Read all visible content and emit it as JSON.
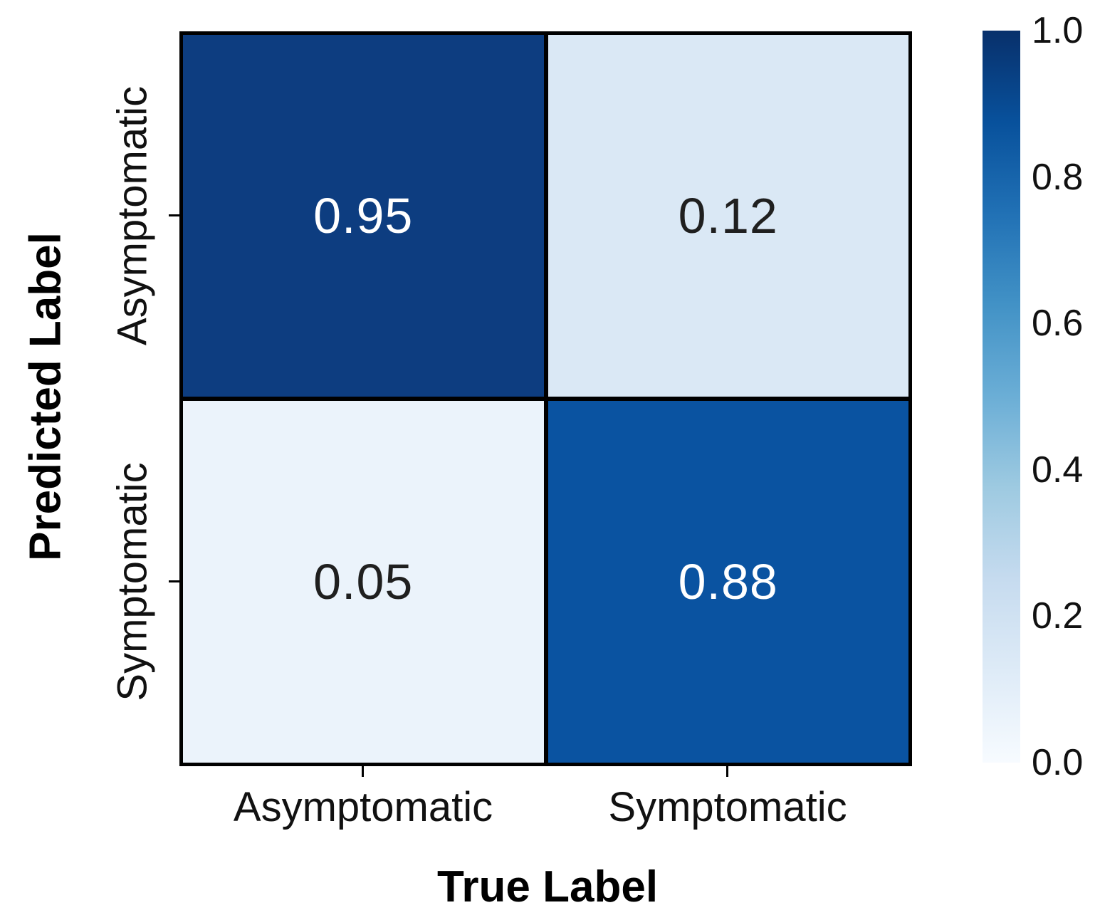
{
  "chart_data": {
    "type": "heatmap",
    "subtype": "confusion-matrix",
    "title": "",
    "xlabel": "True Label",
    "ylabel": "Predicted Label",
    "x_categories": [
      "Asymptomatic",
      "Symptomatic"
    ],
    "y_categories": [
      "Asymptomatic",
      "Symptomatic"
    ],
    "values": [
      [
        0.95,
        0.12
      ],
      [
        0.05,
        0.88
      ]
    ],
    "value_range": [
      0.0,
      1.0
    ],
    "colormap": "Blues",
    "grid": "black cell borders",
    "legend_position": "right-colorbar"
  },
  "cells": {
    "r0c0": {
      "value": "0.95",
      "bg": "#0d3d80",
      "fg": "#ffffff"
    },
    "r0c1": {
      "value": "0.12",
      "bg": "#dae8f5",
      "fg": "#1f1f1f"
    },
    "r1c0": {
      "value": "0.05",
      "bg": "#ebf3fb",
      "fg": "#1f1f1f"
    },
    "r1c1": {
      "value": "0.88",
      "bg": "#0a53a1",
      "fg": "#ffffff"
    }
  },
  "x_axis": {
    "label": "True Label",
    "ticks": [
      "Asymptomatic",
      "Symptomatic"
    ]
  },
  "y_axis": {
    "label": "Predicted Label",
    "ticks": [
      "Asymptomatic",
      "Symptomatic"
    ]
  },
  "colorbar": {
    "ticks": [
      "1.0",
      "0.8",
      "0.6",
      "0.4",
      "0.2",
      "0.0"
    ],
    "gradient_top_to_bottom": [
      "#08306b",
      "#08519c",
      "#2171b5",
      "#4292c6",
      "#6baed6",
      "#9ecae1",
      "#c6dbef",
      "#deebf7",
      "#f7fbff"
    ]
  }
}
